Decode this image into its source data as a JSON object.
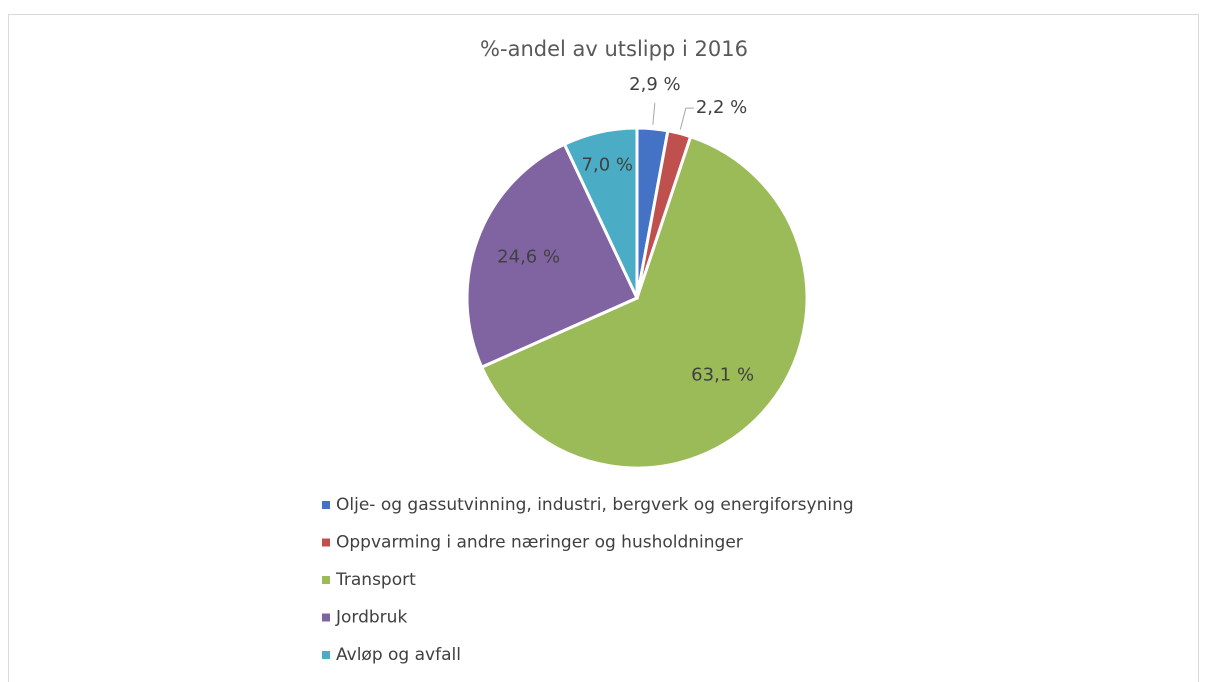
{
  "chart_data": {
    "type": "pie",
    "title": "%-andel av utslipp i 2016",
    "categories": [
      "Olje- og gassutvinning, industri, bergverk og energiforsyning",
      "Oppvarming i andre næringer og husholdninger",
      "Transport",
      "Jordbruk",
      "Avløp og avfall"
    ],
    "values": [
      2.9,
      2.2,
      63.1,
      24.6,
      7.0
    ],
    "value_labels": [
      "2,9 %",
      "2,2 %",
      "63,1 %",
      "24,6 %",
      "7,0 %"
    ],
    "colors": [
      "#4472c4",
      "#c0504d",
      "#9bbb59",
      "#8064a2",
      "#4bacc6"
    ],
    "legend": "bottom"
  }
}
